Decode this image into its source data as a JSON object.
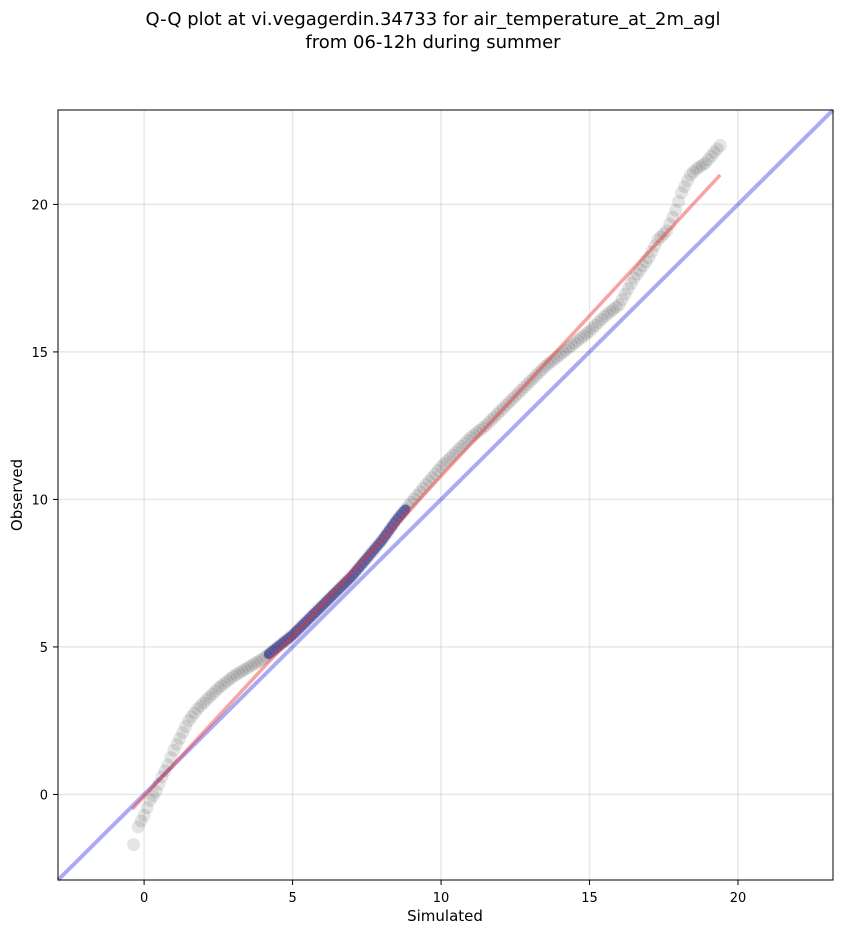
{
  "chart_data": {
    "type": "scatter",
    "title_line1": "Q-Q plot at vi.vegagerdin.34733 for air_temperature_at_2m_agl",
    "title_line2": "from 06-12h during summer",
    "xlabel": "Simulated",
    "ylabel": "Observed",
    "xlim": [
      -2.9,
      23.2
    ],
    "ylim": [
      -2.9,
      23.2
    ],
    "xticks": [
      0,
      5,
      10,
      15,
      20
    ],
    "yticks": [
      0,
      5,
      10,
      15,
      20
    ],
    "grid": true,
    "colors": {
      "points": "#000000",
      "reference_line": "#0000dd",
      "fit_line": "#ee3333",
      "dense_overlay": "#000080"
    },
    "reference_line": {
      "x": [
        -2.9,
        23.2
      ],
      "y": [
        -2.9,
        23.2
      ]
    },
    "fit_line": {
      "x": [
        -0.4,
        19.4
      ],
      "y": [
        -0.5,
        21.0
      ]
    },
    "quantile_curve": {
      "x": [
        -0.35,
        -0.2,
        0.0,
        0.2,
        0.4,
        0.6,
        0.8,
        1.0,
        1.2,
        1.5,
        1.8,
        2.1,
        2.5,
        3.0,
        3.5,
        4.0,
        4.5,
        5.0,
        5.5,
        6.0,
        6.5,
        7.0,
        7.5,
        8.0,
        8.5,
        9.0,
        9.5,
        10.0,
        10.5,
        11.0,
        11.5,
        12.0,
        12.5,
        13.0,
        13.5,
        14.0,
        14.5,
        15.0,
        15.5,
        16.0,
        16.5,
        17.0,
        17.3,
        17.6,
        17.9,
        18.1,
        18.4,
        18.6,
        18.9,
        19.4
      ],
      "y": [
        -1.7,
        -1.1,
        -0.7,
        -0.2,
        0.1,
        0.6,
        1.0,
        1.5,
        1.9,
        2.5,
        2.9,
        3.2,
        3.6,
        4.0,
        4.3,
        4.6,
        5.0,
        5.4,
        5.9,
        6.4,
        6.9,
        7.4,
        8.0,
        8.6,
        9.3,
        9.9,
        10.5,
        11.1,
        11.6,
        12.1,
        12.5,
        13.0,
        13.5,
        14.0,
        14.5,
        14.9,
        15.3,
        15.7,
        16.2,
        16.6,
        17.5,
        18.2,
        18.8,
        19.1,
        19.8,
        20.4,
        21.0,
        21.2,
        21.4,
        22.0
      ]
    }
  }
}
